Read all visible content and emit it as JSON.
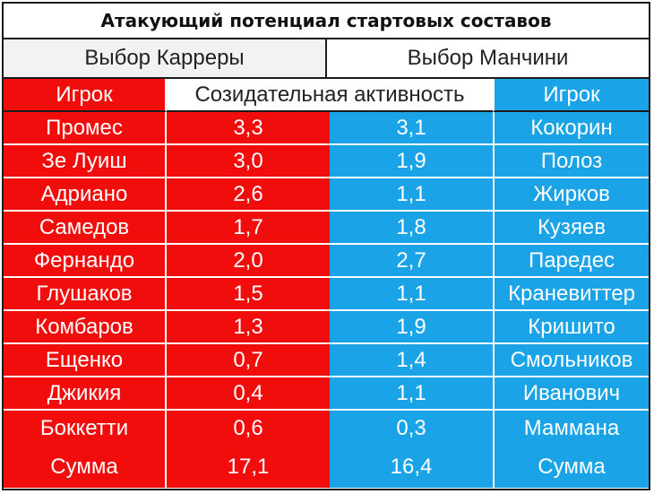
{
  "title": "Атакующий потенциал стартовых составов",
  "choices": {
    "left": "Выбор Карреры",
    "right": "Выбор Манчини"
  },
  "header": {
    "player_left": "Игрок",
    "metric": "Созидательная активность",
    "player_right": "Игрок"
  },
  "rows": [
    {
      "left_player": "Промес",
      "left_value": "3,3",
      "right_value": "3,1",
      "right_player": "Кокорин"
    },
    {
      "left_player": "Зе Луиш",
      "left_value": "3,0",
      "right_value": "1,9",
      "right_player": "Полоз"
    },
    {
      "left_player": "Адриано",
      "left_value": "2,6",
      "right_value": "1,1",
      "right_player": "Жирков"
    },
    {
      "left_player": "Самедов",
      "left_value": "1,7",
      "right_value": "1,8",
      "right_player": "Кузяев"
    },
    {
      "left_player": "Фернандо",
      "left_value": "2,0",
      "right_value": "2,7",
      "right_player": "Паредес"
    },
    {
      "left_player": "Глушаков",
      "left_value": "1,5",
      "right_value": "1,1",
      "right_player": "Краневиттер"
    },
    {
      "left_player": "Комбаров",
      "left_value": "1,3",
      "right_value": "1,9",
      "right_player": "Кришито"
    },
    {
      "left_player": "Ещенко",
      "left_value": "0,7",
      "right_value": "1,4",
      "right_player": "Смольников"
    },
    {
      "left_player": "Джикия",
      "left_value": "0,4",
      "right_value": "1,1",
      "right_player": "Иванович"
    },
    {
      "left_player": "Боккетти",
      "left_value": "0,6",
      "right_value": "0,3",
      "right_player": "Маммана"
    }
  ],
  "sum": {
    "left_label": "Сумма",
    "left_value": "17,1",
    "right_value": "16,4",
    "right_label": "Сумма"
  },
  "colors": {
    "carrera": "#f20d0d",
    "mancini": "#1aa3e6"
  }
}
